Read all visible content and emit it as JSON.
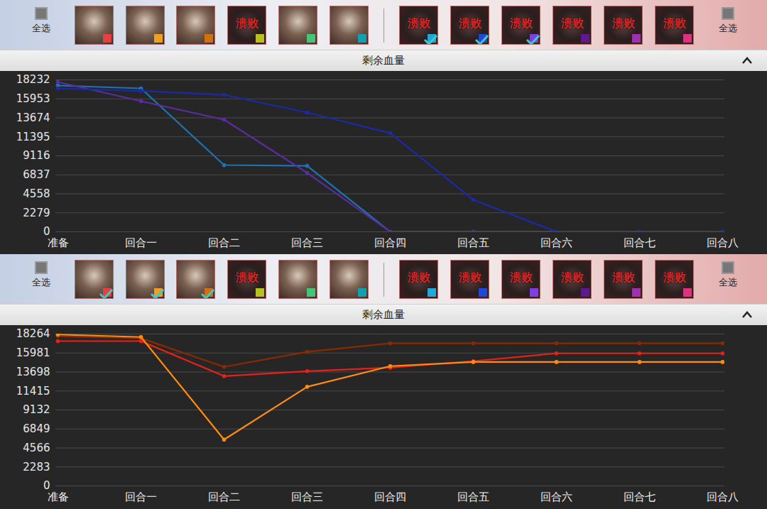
{
  "chart_data": [
    {
      "type": "line",
      "title": "剩余血量",
      "annotations": [
        "全选",
        null,
        null,
        null,
        "溃败",
        null,
        null,
        "溃败",
        "溃败",
        "溃败",
        "溃败",
        "溃败",
        "溃败",
        "全选"
      ],
      "categories": [
        "准备",
        "回合一",
        "回合二",
        "回合三",
        "回合四",
        "回合五",
        "回合六",
        "回合七",
        "回合八"
      ],
      "series": [
        {
          "color": "#1f73b0",
          "values": [
            17550,
            17210,
            8010,
            7920,
            0,
            0,
            0,
            0,
            0
          ]
        },
        {
          "color": "#5b2ca0",
          "values": [
            17980,
            15680,
            13460,
            7070,
            0,
            0,
            0,
            0,
            0
          ]
        },
        {
          "color": "#1a2aa8",
          "values": [
            17210,
            16900,
            16440,
            14310,
            11840,
            3830,
            0,
            0,
            0
          ]
        }
      ],
      "ylim": [
        0,
        18232
      ],
      "yticks": [
        0,
        2279,
        4558,
        6837,
        9116,
        11395,
        13674,
        15953,
        18232
      ],
      "grid": true,
      "marker": "circle"
    },
    {
      "type": "line",
      "title": "剩余血量",
      "annotations": [
        "全选",
        null,
        null,
        null,
        "溃败",
        null,
        null,
        "溃败",
        "溃败",
        "溃败",
        "溃败",
        "溃败",
        "溃败",
        "全选"
      ],
      "categories": [
        "准备",
        "回合一",
        "回合二",
        "回合三",
        "回合四",
        "回合五",
        "回合六",
        "回合七",
        "回合八"
      ],
      "series": [
        {
          "color": "#8b2a00",
          "values": [
            18000,
            17750,
            14320,
            16120,
            17150,
            17150,
            17150,
            17150,
            17150
          ]
        },
        {
          "color": "#e8201a",
          "values": [
            17410,
            17410,
            13200,
            13800,
            14220,
            15000,
            15940,
            15940,
            15940
          ]
        },
        {
          "color": "#ff8c10",
          "values": [
            18200,
            17900,
            5570,
            11920,
            14400,
            14900,
            14900,
            14900,
            14900
          ]
        }
      ],
      "ylim": [
        0,
        18264
      ],
      "yticks": [
        0,
        2283,
        4566,
        6849,
        9132,
        11415,
        13698,
        15981,
        18264
      ],
      "grid": true,
      "marker": "circle"
    }
  ]
}
